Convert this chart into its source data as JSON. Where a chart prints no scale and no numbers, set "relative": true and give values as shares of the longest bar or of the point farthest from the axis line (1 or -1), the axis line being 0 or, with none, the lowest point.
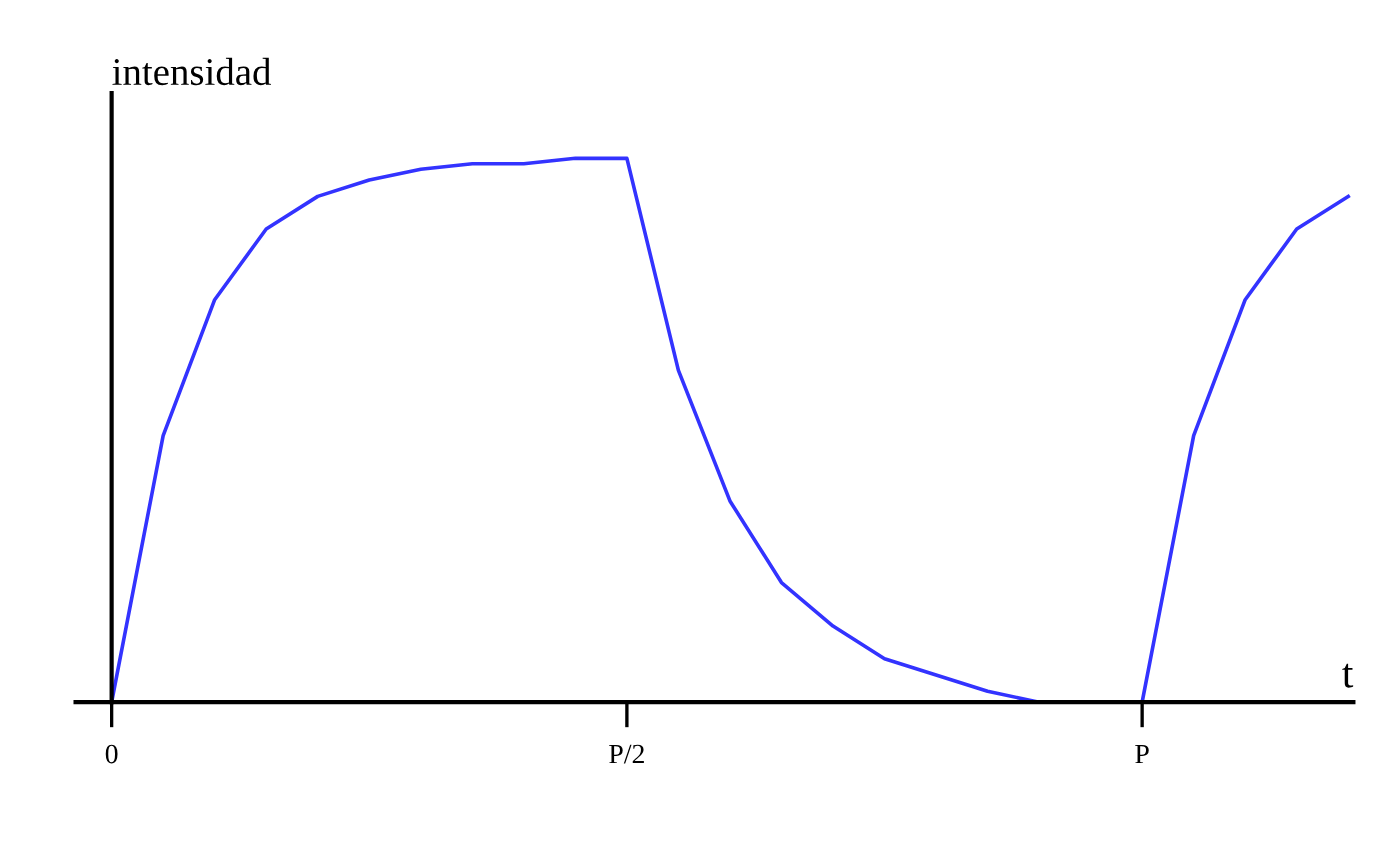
{
  "chart_data": {
    "type": "line",
    "relative": true,
    "ylabel": "intensidad",
    "xlabel": "t",
    "categories": [
      "0",
      null,
      null,
      null,
      null,
      null,
      null,
      null,
      null,
      null,
      "P/2",
      null,
      null,
      null,
      null,
      null,
      null,
      null,
      null,
      null,
      "P",
      null,
      null,
      null,
      null
    ],
    "series": [
      {
        "color": "#3333ff",
        "values": [
          0,
          0.49,
          0.74,
          0.87,
          0.93,
          0.96,
          0.98,
          0.99,
          0.99,
          1.0,
          1.0,
          0.61,
          0.37,
          0.22,
          0.14,
          0.08,
          0.05,
          0.02,
          0,
          0,
          0,
          0.49,
          0.74,
          0.87,
          0.93
        ]
      }
    ],
    "marker": "none",
    "line_style": "solid"
  }
}
